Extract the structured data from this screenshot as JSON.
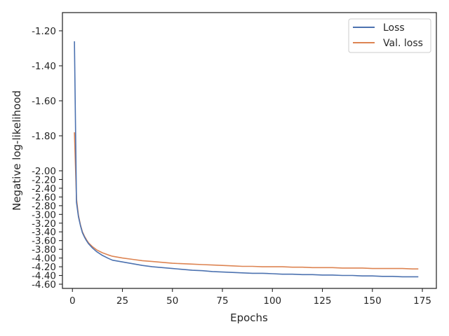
{
  "chart_data": {
    "type": "line",
    "title": "",
    "xlabel": "Epochs",
    "ylabel": "Negative log-likelihood",
    "xlim": [
      -5,
      182
    ],
    "ylim": [
      -4.64,
      -1.09
    ],
    "x_ticks": [
      0,
      25,
      50,
      75,
      100,
      125,
      150,
      175
    ],
    "x_tick_labels": [
      "0",
      "25",
      "50",
      "75",
      "100",
      "125",
      "150",
      "175"
    ],
    "y_ticks": [
      -1.2,
      -1.4,
      -1.6,
      -1.8,
      -2.0,
      -2.2,
      -2.4,
      -2.6,
      -2.8,
      -3.0,
      -3.2,
      -3.4,
      -3.6,
      -3.8,
      -4.0,
      -4.2,
      -4.4,
      -4.6
    ],
    "y_tick_labels": [
      "-1.20",
      "-1.40",
      "-1.60",
      "-1.80",
      "-2.00",
      "-2.20",
      "-2.40",
      "-2.60",
      "-2.80",
      "-3.00",
      "-3.20",
      "-3.40",
      "-3.60",
      "-3.80",
      "-4.00",
      "-4.20",
      "-4.40",
      "-4.60"
    ],
    "y_tick_scale": "compressed: -1.20 to -2.00 labels spread out, -2.00 to -4.60 labels packed together",
    "grid": false,
    "legend_position": "top-right",
    "series": [
      {
        "name": "Loss",
        "color": "#4c72b0",
        "x": [
          1,
          2,
          3,
          4,
          5,
          6,
          7,
          8,
          10,
          12,
          15,
          18,
          20,
          25,
          30,
          35,
          40,
          45,
          50,
          55,
          60,
          65,
          70,
          75,
          80,
          85,
          90,
          95,
          100,
          105,
          110,
          115,
          120,
          125,
          130,
          135,
          140,
          145,
          150,
          155,
          160,
          165,
          170,
          173
        ],
        "y": [
          -1.26,
          -2.72,
          -3.05,
          -3.26,
          -3.42,
          -3.52,
          -3.6,
          -3.67,
          -3.77,
          -3.85,
          -3.94,
          -4.01,
          -4.05,
          -4.09,
          -4.13,
          -4.17,
          -4.2,
          -4.22,
          -4.24,
          -4.26,
          -4.28,
          -4.29,
          -4.31,
          -4.32,
          -4.33,
          -4.34,
          -4.35,
          -4.35,
          -4.36,
          -4.37,
          -4.37,
          -4.38,
          -4.38,
          -4.39,
          -4.39,
          -4.4,
          -4.4,
          -4.41,
          -4.41,
          -4.42,
          -4.42,
          -4.43,
          -4.43,
          -4.43
        ]
      },
      {
        "name": "Val. loss",
        "color": "#dd8452",
        "x": [
          1,
          2,
          3,
          4,
          5,
          6,
          7,
          8,
          10,
          12,
          15,
          18,
          20,
          25,
          30,
          35,
          40,
          45,
          50,
          55,
          60,
          65,
          70,
          75,
          80,
          85,
          90,
          95,
          100,
          105,
          110,
          115,
          120,
          125,
          130,
          135,
          140,
          145,
          150,
          155,
          160,
          165,
          170,
          173
        ],
        "y": [
          -1.78,
          -2.64,
          -3.02,
          -3.24,
          -3.4,
          -3.5,
          -3.58,
          -3.65,
          -3.74,
          -3.81,
          -3.88,
          -3.93,
          -3.96,
          -4.0,
          -4.03,
          -4.06,
          -4.08,
          -4.1,
          -4.12,
          -4.13,
          -4.14,
          -4.15,
          -4.16,
          -4.17,
          -4.18,
          -4.19,
          -4.19,
          -4.2,
          -4.2,
          -4.2,
          -4.21,
          -4.21,
          -4.22,
          -4.22,
          -4.22,
          -4.23,
          -4.23,
          -4.23,
          -4.24,
          -4.24,
          -4.24,
          -4.24,
          -4.25,
          -4.25
        ]
      }
    ]
  }
}
